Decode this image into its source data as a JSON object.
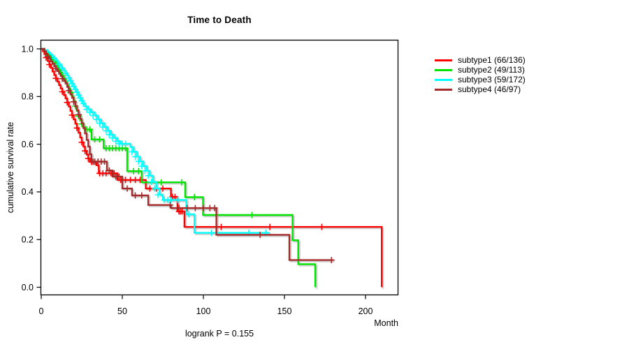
{
  "window": {
    "background": "#ffffff"
  },
  "chart_data": {
    "type": "line",
    "variant": "kaplan-meier-step",
    "title": "Time to Death",
    "xlabel": "Month",
    "ylabel": "cumulative survival rate",
    "annotation": "logrank P = 0.155",
    "grid": false,
    "legend_position": "right",
    "xlim": [
      0,
      220
    ],
    "ylim": [
      0,
      1
    ],
    "xticks": [
      0,
      50,
      100,
      150,
      200
    ],
    "yticks": [
      0.0,
      0.2,
      0.4,
      0.6,
      0.8,
      1.0
    ],
    "axis_color": "#000000",
    "shadow_color": "#b4b4b4",
    "series": [
      {
        "name": "subtype1 (66/136)",
        "events": 66,
        "total": 136,
        "color": "#ff0000",
        "steps": [
          [
            0,
            1
          ],
          [
            1,
            0.99
          ],
          [
            2,
            0.978
          ],
          [
            3,
            0.963
          ],
          [
            4,
            0.949
          ],
          [
            5,
            0.934
          ],
          [
            6,
            0.92
          ],
          [
            7,
            0.905
          ],
          [
            8,
            0.89
          ],
          [
            9,
            0.876
          ],
          [
            10,
            0.862
          ],
          [
            11,
            0.848
          ],
          [
            12,
            0.834
          ],
          [
            13,
            0.82
          ],
          [
            14,
            0.806
          ],
          [
            15,
            0.792
          ],
          [
            16,
            0.775
          ],
          [
            17,
            0.758
          ],
          [
            18,
            0.74
          ],
          [
            19,
            0.722
          ],
          [
            20,
            0.704
          ],
          [
            21,
            0.686
          ],
          [
            22,
            0.668
          ],
          [
            23,
            0.648
          ],
          [
            24,
            0.628
          ],
          [
            25,
            0.608
          ],
          [
            26,
            0.59
          ],
          [
            27,
            0.572
          ],
          [
            28,
            0.556
          ],
          [
            29,
            0.54
          ],
          [
            30,
            0.526
          ],
          [
            34,
            0.512
          ],
          [
            35.5,
            0.478
          ],
          [
            47,
            0.45
          ],
          [
            64.5,
            0.414
          ],
          [
            80,
            0.379
          ],
          [
            84,
            0.318
          ],
          [
            88.3,
            0.253
          ],
          [
            210,
            0
          ]
        ],
        "censors": [
          [
            3,
            0.963
          ],
          [
            5,
            0.934
          ],
          [
            9,
            0.876
          ],
          [
            13,
            0.82
          ],
          [
            16,
            0.775
          ],
          [
            19,
            0.722
          ],
          [
            22,
            0.668
          ],
          [
            25,
            0.608
          ],
          [
            27,
            0.572
          ],
          [
            29,
            0.54
          ],
          [
            31,
            0.526
          ],
          [
            32,
            0.526
          ],
          [
            33,
            0.526
          ],
          [
            36,
            0.478
          ],
          [
            38,
            0.478
          ],
          [
            40,
            0.478
          ],
          [
            43,
            0.478
          ],
          [
            45,
            0.478
          ],
          [
            49,
            0.45
          ],
          [
            52,
            0.45
          ],
          [
            55,
            0.45
          ],
          [
            58,
            0.45
          ],
          [
            61,
            0.45
          ],
          [
            67,
            0.414
          ],
          [
            71,
            0.414
          ],
          [
            75,
            0.414
          ],
          [
            81,
            0.379
          ],
          [
            82.5,
            0.379
          ],
          [
            85,
            0.318
          ],
          [
            86,
            0.318
          ],
          [
            87,
            0.318
          ],
          [
            111,
            0.253
          ],
          [
            141,
            0.253
          ],
          [
            173,
            0.253
          ]
        ]
      },
      {
        "name": "subtype2 (49/113)",
        "events": 49,
        "total": 113,
        "color": "#00e400",
        "steps": [
          [
            0,
            1
          ],
          [
            2,
            0.991
          ],
          [
            4,
            0.982
          ],
          [
            5,
            0.973
          ],
          [
            6,
            0.964
          ],
          [
            7,
            0.955
          ],
          [
            8,
            0.946
          ],
          [
            9,
            0.937
          ],
          [
            10,
            0.925
          ],
          [
            11,
            0.912
          ],
          [
            12,
            0.9
          ],
          [
            13,
            0.887
          ],
          [
            14,
            0.875
          ],
          [
            15,
            0.863
          ],
          [
            16,
            0.848
          ],
          [
            17,
            0.833
          ],
          [
            18,
            0.817
          ],
          [
            19,
            0.8
          ],
          [
            20,
            0.78
          ],
          [
            21,
            0.76
          ],
          [
            22,
            0.74
          ],
          [
            23,
            0.718
          ],
          [
            24,
            0.7
          ],
          [
            25,
            0.685
          ],
          [
            26,
            0.672
          ],
          [
            27,
            0.662
          ],
          [
            31,
            0.62
          ],
          [
            38.5,
            0.583
          ],
          [
            53,
            0.487
          ],
          [
            62,
            0.44
          ],
          [
            88.8,
            0.378
          ],
          [
            99.8,
            0.303
          ],
          [
            155,
            0.197
          ],
          [
            158.5,
            0.097
          ],
          [
            169,
            0
          ]
        ],
        "censors": [
          [
            5,
            0.973
          ],
          [
            9,
            0.937
          ],
          [
            14,
            0.875
          ],
          [
            18,
            0.817
          ],
          [
            21,
            0.76
          ],
          [
            23,
            0.718
          ],
          [
            25,
            0.685
          ],
          [
            28,
            0.662
          ],
          [
            30,
            0.662
          ],
          [
            33,
            0.62
          ],
          [
            36,
            0.62
          ],
          [
            40,
            0.583
          ],
          [
            42,
            0.583
          ],
          [
            44,
            0.583
          ],
          [
            46,
            0.583
          ],
          [
            48,
            0.583
          ],
          [
            50,
            0.583
          ],
          [
            52,
            0.583
          ],
          [
            57,
            0.487
          ],
          [
            60,
            0.487
          ],
          [
            74,
            0.44
          ],
          [
            86.6,
            0.44
          ],
          [
            94.5,
            0.378
          ],
          [
            130,
            0.303
          ]
        ]
      },
      {
        "name": "subtype3 (59/172)",
        "events": 59,
        "total": 172,
        "color": "#00ffff",
        "steps": [
          [
            0,
            1
          ],
          [
            2,
            0.994
          ],
          [
            4,
            0.988
          ],
          [
            5,
            0.982
          ],
          [
            6,
            0.976
          ],
          [
            7,
            0.968
          ],
          [
            8,
            0.96
          ],
          [
            9,
            0.952
          ],
          [
            10,
            0.944
          ],
          [
            11,
            0.936
          ],
          [
            12,
            0.927
          ],
          [
            13,
            0.918
          ],
          [
            14,
            0.908
          ],
          [
            15,
            0.898
          ],
          [
            16,
            0.888
          ],
          [
            17,
            0.878
          ],
          [
            18,
            0.866
          ],
          [
            19,
            0.854
          ],
          [
            20,
            0.842
          ],
          [
            21,
            0.83
          ],
          [
            22,
            0.818
          ],
          [
            23,
            0.806
          ],
          [
            24,
            0.794
          ],
          [
            25,
            0.782
          ],
          [
            26,
            0.77
          ],
          [
            27,
            0.758
          ],
          [
            29,
            0.746
          ],
          [
            31,
            0.734
          ],
          [
            33,
            0.72
          ],
          [
            35,
            0.704
          ],
          [
            37,
            0.688
          ],
          [
            39,
            0.672
          ],
          [
            41,
            0.656
          ],
          [
            43,
            0.64
          ],
          [
            45,
            0.626
          ],
          [
            47,
            0.612
          ],
          [
            49,
            0.602
          ],
          [
            55,
            0.588
          ],
          [
            57,
            0.568
          ],
          [
            59,
            0.548
          ],
          [
            61,
            0.528
          ],
          [
            63,
            0.508
          ],
          [
            65,
            0.488
          ],
          [
            67,
            0.468
          ],
          [
            69,
            0.442
          ],
          [
            71,
            0.414
          ],
          [
            73,
            0.388
          ],
          [
            75,
            0.366
          ],
          [
            89.5,
            0.306
          ],
          [
            94.5,
            0.228
          ],
          [
            141,
            0.228
          ]
        ],
        "censors": [
          [
            8,
            0.96
          ],
          [
            11,
            0.936
          ],
          [
            13,
            0.918
          ],
          [
            15,
            0.898
          ],
          [
            17,
            0.878
          ],
          [
            18,
            0.866
          ],
          [
            19,
            0.854
          ],
          [
            20,
            0.842
          ],
          [
            21,
            0.83
          ],
          [
            22,
            0.818
          ],
          [
            23,
            0.806
          ],
          [
            24,
            0.794
          ],
          [
            25,
            0.782
          ],
          [
            26,
            0.77
          ],
          [
            28,
            0.746
          ],
          [
            30,
            0.734
          ],
          [
            32,
            0.72
          ],
          [
            34,
            0.704
          ],
          [
            36,
            0.688
          ],
          [
            38,
            0.672
          ],
          [
            40,
            0.656
          ],
          [
            42,
            0.64
          ],
          [
            44,
            0.626
          ],
          [
            46,
            0.612
          ],
          [
            48,
            0.602
          ],
          [
            50,
            0.602
          ],
          [
            52,
            0.602
          ],
          [
            56,
            0.568
          ],
          [
            58,
            0.548
          ],
          [
            60,
            0.528
          ],
          [
            62,
            0.508
          ],
          [
            64,
            0.488
          ],
          [
            66,
            0.468
          ],
          [
            68,
            0.442
          ],
          [
            70,
            0.414
          ],
          [
            72,
            0.388
          ],
          [
            76,
            0.366
          ],
          [
            78,
            0.366
          ],
          [
            80,
            0.366
          ],
          [
            84,
            0.366
          ],
          [
            91,
            0.306
          ],
          [
            105,
            0.228
          ],
          [
            128,
            0.228
          ],
          [
            138.5,
            0.228
          ]
        ]
      },
      {
        "name": "subtype4 (46/97)",
        "events": 46,
        "total": 97,
        "color": "#a52a2a",
        "steps": [
          [
            0,
            1
          ],
          [
            2,
            0.99
          ],
          [
            3,
            0.979
          ],
          [
            4,
            0.969
          ],
          [
            5,
            0.959
          ],
          [
            6,
            0.948
          ],
          [
            7,
            0.938
          ],
          [
            8,
            0.927
          ],
          [
            9,
            0.917
          ],
          [
            10,
            0.907
          ],
          [
            11,
            0.896
          ],
          [
            12,
            0.886
          ],
          [
            13,
            0.875
          ],
          [
            14,
            0.865
          ],
          [
            15,
            0.855
          ],
          [
            16,
            0.84
          ],
          [
            17,
            0.825
          ],
          [
            18,
            0.81
          ],
          [
            19,
            0.795
          ],
          [
            20,
            0.778
          ],
          [
            21,
            0.76
          ],
          [
            22,
            0.742
          ],
          [
            23,
            0.724
          ],
          [
            24,
            0.706
          ],
          [
            25,
            0.688
          ],
          [
            26,
            0.668
          ],
          [
            27,
            0.645
          ],
          [
            28,
            0.618
          ],
          [
            29,
            0.59
          ],
          [
            30,
            0.558
          ],
          [
            31,
            0.527
          ],
          [
            40.5,
            0.49
          ],
          [
            44,
            0.464
          ],
          [
            50,
            0.414
          ],
          [
            56,
            0.385
          ],
          [
            66,
            0.345
          ],
          [
            80,
            0.332
          ],
          [
            108,
            0.22
          ],
          [
            153,
            0.114
          ],
          [
            180,
            0.114
          ]
        ],
        "censors": [
          [
            4,
            0.969
          ],
          [
            9,
            0.917
          ],
          [
            13,
            0.875
          ],
          [
            17,
            0.825
          ],
          [
            20,
            0.778
          ],
          [
            23,
            0.724
          ],
          [
            33,
            0.527
          ],
          [
            35,
            0.527
          ],
          [
            37,
            0.527
          ],
          [
            39,
            0.527
          ],
          [
            42,
            0.49
          ],
          [
            46,
            0.464
          ],
          [
            48,
            0.464
          ],
          [
            53,
            0.414
          ],
          [
            58,
            0.385
          ],
          [
            62,
            0.385
          ],
          [
            79.5,
            0.345
          ],
          [
            85,
            0.332
          ],
          [
            90,
            0.332
          ],
          [
            95,
            0.332
          ],
          [
            100,
            0.332
          ],
          [
            104,
            0.332
          ],
          [
            107,
            0.332
          ],
          [
            135,
            0.22
          ],
          [
            179,
            0.114
          ]
        ]
      }
    ]
  }
}
